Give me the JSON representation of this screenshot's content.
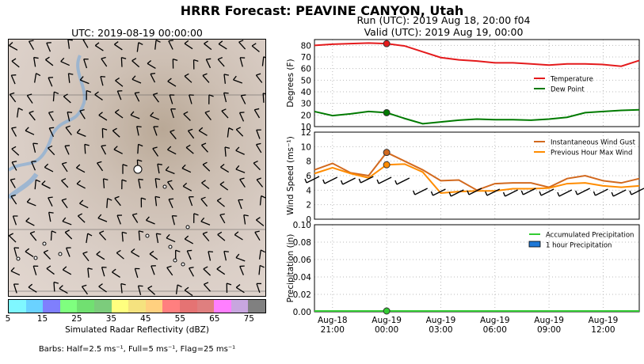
{
  "header": {
    "title": "HRRR Forecast: PEAVINE CANYON, Utah",
    "run_line": "Run (UTC): 2019 Aug 18, 20:00 f04",
    "valid_line": "Valid (UTC): 2019 Aug 19, 00:00"
  },
  "map": {
    "title": "UTC: 2019-08-19 00:00:00",
    "colorbar": {
      "label": "Simulated Radar Reflectivity (dBZ)",
      "ticks": [
        "5",
        "15",
        "25",
        "35",
        "45",
        "55",
        "65",
        "75"
      ],
      "colors": [
        "#7ff7ff",
        "#6ad2ff",
        "#7f7ffd",
        "#7fff7f",
        "#71e071",
        "#7ccc7c",
        "#ffff7f",
        "#f5e27f",
        "#ffd07f",
        "#ff7f7f",
        "#e57373",
        "#df7f7f",
        "#ff7fff",
        "#c8a6df",
        "#808080"
      ]
    },
    "barbs_note": "Barbs: Half=2.5 ms⁻¹, Full=5 ms⁻¹, Flag=25 ms⁻¹"
  },
  "chart_data": [
    {
      "type": "line",
      "title": "",
      "ylabel": "Degrees (F)",
      "ylim": [
        10,
        85
      ],
      "yticks": [
        10,
        20,
        30,
        40,
        50,
        60,
        70,
        80
      ],
      "x": [
        "Aug-18 20:00",
        "Aug-18 21:00",
        "Aug-18 22:00",
        "Aug-18 23:00",
        "Aug-19 00:00",
        "Aug-19 01:00",
        "Aug-19 02:00",
        "Aug-19 03:00",
        "Aug-19 04:00",
        "Aug-19 05:00",
        "Aug-19 06:00",
        "Aug-19 07:00",
        "Aug-19 08:00",
        "Aug-19 09:00",
        "Aug-19 10:00",
        "Aug-19 11:00",
        "Aug-19 12:00",
        "Aug-19 13:00",
        "Aug-19 14:00"
      ],
      "series": [
        {
          "name": "Temperature",
          "color": "#e41a1c",
          "values": [
            80,
            81,
            81.5,
            82,
            81.5,
            79.5,
            74.5,
            69.5,
            67.5,
            66.5,
            65,
            65,
            64,
            63,
            64,
            64,
            63.5,
            62,
            67
          ]
        },
        {
          "name": "Dew Point",
          "color": "#007a00",
          "values": [
            23,
            19.5,
            21,
            23,
            22,
            17,
            12.5,
            14,
            15.5,
            16.5,
            16,
            16,
            15.5,
            16.5,
            18,
            22,
            23,
            24,
            24.5
          ]
        }
      ],
      "markers": [
        {
          "x": "Aug-19 00:00",
          "series": "Temperature",
          "value": 81.5
        },
        {
          "x": "Aug-19 00:00",
          "series": "Dew Point",
          "value": 22
        }
      ],
      "legend": "right"
    },
    {
      "type": "line",
      "title": "",
      "ylabel": "Wind Speed (ms⁻¹)",
      "ylim": [
        0,
        12
      ],
      "yticks": [
        0,
        2,
        4,
        6,
        8,
        10,
        12
      ],
      "x": [
        "Aug-18 20:00",
        "Aug-18 21:00",
        "Aug-18 22:00",
        "Aug-18 23:00",
        "Aug-19 00:00",
        "Aug-19 01:00",
        "Aug-19 02:00",
        "Aug-19 03:00",
        "Aug-19 04:00",
        "Aug-19 05:00",
        "Aug-19 06:00",
        "Aug-19 07:00",
        "Aug-19 08:00",
        "Aug-19 09:00",
        "Aug-19 10:00",
        "Aug-19 11:00",
        "Aug-19 12:00",
        "Aug-19 13:00",
        "Aug-19 14:00"
      ],
      "series": [
        {
          "name": "Instantaneous Wind Gust",
          "color": "#d2691e",
          "values": [
            6.8,
            7.7,
            6.4,
            6.0,
            9.2,
            8.0,
            6.8,
            5.3,
            5.4,
            4.0,
            4.9,
            5.0,
            5.0,
            4.4,
            5.6,
            6.0,
            5.3,
            5.0,
            5.6
          ]
        },
        {
          "name": "Previous Hour Max Wind",
          "color": "#ff8c00",
          "values": [
            6.3,
            7.1,
            6.3,
            5.7,
            7.5,
            7.6,
            6.5,
            3.6,
            3.8,
            3.9,
            3.9,
            4.2,
            4.2,
            4.3,
            4.9,
            5.0,
            4.6,
            4.4,
            4.6
          ]
        }
      ],
      "markers": [
        {
          "x": "Aug-19 00:00",
          "series": "Instantaneous Wind Gust",
          "value": 9.2
        },
        {
          "x": "Aug-19 00:00",
          "series": "Previous Hour Max Wind",
          "value": 7.5
        }
      ],
      "legend": "top-right"
    },
    {
      "type": "area",
      "title": "",
      "ylabel": "Precipitation (in)",
      "ylim": [
        0,
        0.1
      ],
      "yticks": [
        "0.00",
        "0.02",
        "0.04",
        "0.06",
        "0.08",
        "0.10"
      ],
      "x": [
        "Aug-18 20:00",
        "Aug-19 14:00"
      ],
      "series": [
        {
          "name": "Accumulated Precipitation",
          "color": "#33cc33",
          "values": [
            0,
            0
          ]
        },
        {
          "name": "1 hour Precipitation",
          "color": "#1e78d6",
          "values": [
            0,
            0
          ]
        }
      ],
      "xtick_labels": [
        [
          "Aug-18",
          "21:00"
        ],
        [
          "Aug-19",
          "00:00"
        ],
        [
          "Aug-19",
          "03:00"
        ],
        [
          "Aug-19",
          "06:00"
        ],
        [
          "Aug-19",
          "09:00"
        ],
        [
          "Aug-19",
          "12:00"
        ]
      ],
      "legend": "top-right"
    }
  ]
}
